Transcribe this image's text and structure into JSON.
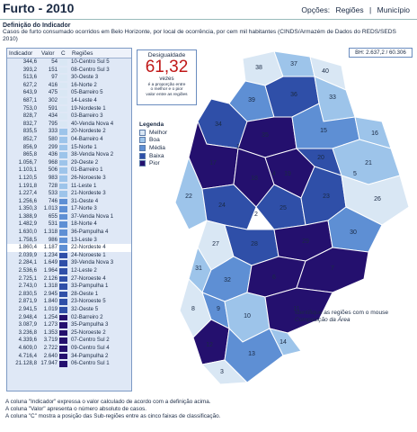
{
  "header": {
    "title": "Furto - 2010",
    "nav": {
      "options": "Opções:",
      "regions": "Regiões",
      "separator": "|",
      "municipality": "Município"
    }
  },
  "definition": {
    "title": "Definição do Indicador",
    "text": "Casos de furto consumado ocorridos em Belo Horizonte, por local de ocorrência, por cem mil habitantes (CINDS/Armazém de Dados do REDS/SEDS 2010)"
  },
  "table": {
    "headers": {
      "indicador": "Indicador",
      "valor": "Valor",
      "c": "C",
      "regioes": "Regiões"
    },
    "rows": [
      {
        "ind": "344,6",
        "val": "54",
        "c": 1,
        "reg": "10-Centro Sul 5"
      },
      {
        "ind": "393,2",
        "val": "151",
        "c": 1,
        "reg": "08-Centro Sul 3"
      },
      {
        "ind": "513,6",
        "val": "97",
        "c": 1,
        "reg": "30-Oeste 3"
      },
      {
        "ind": "627,2",
        "val": "416",
        "c": 1,
        "reg": "16-Norte 2"
      },
      {
        "ind": "643,9",
        "val": "475",
        "c": 1,
        "reg": "05-Barreiro 5"
      },
      {
        "ind": "687,1",
        "val": "302",
        "c": 1,
        "reg": "14-Leste 4"
      },
      {
        "ind": "753,0",
        "val": "591",
        "c": 1,
        "reg": "19-Nordeste 1"
      },
      {
        "ind": "828,7",
        "val": "434",
        "c": 1,
        "reg": "03-Barreiro 3"
      },
      {
        "ind": "832,7",
        "val": "795",
        "c": 1,
        "reg": "40-Venda Nova 4"
      },
      {
        "ind": "835,5",
        "val": "333",
        "c": 2,
        "reg": "20-Nordeste 2"
      },
      {
        "ind": "852,7",
        "val": "580",
        "c": 2,
        "reg": "04-Barreiro 4"
      },
      {
        "ind": "856,9",
        "val": "299",
        "c": 2,
        "reg": "15-Norte 1"
      },
      {
        "ind": "865,8",
        "val": "436",
        "c": 2,
        "reg": "38-Venda Nova 2"
      },
      {
        "ind": "1.056,7",
        "val": "968",
        "c": 2,
        "reg": "29-Oeste 2"
      },
      {
        "ind": "1.103,1",
        "val": "506",
        "c": 2,
        "reg": "01-Barreiro 1"
      },
      {
        "ind": "1.120,5",
        "val": "983",
        "c": 2,
        "reg": "26-Noroeste 3"
      },
      {
        "ind": "1.191,8",
        "val": "728",
        "c": 2,
        "reg": "11-Leste 1"
      },
      {
        "ind": "1.227,4",
        "val": "533",
        "c": 2,
        "reg": "21-Nordeste 3"
      },
      {
        "ind": "1.256,6",
        "val": "746",
        "c": 3,
        "reg": "31-Oeste 4"
      },
      {
        "ind": "1.350,3",
        "val": "1.013",
        "c": 3,
        "reg": "17-Norte 3"
      },
      {
        "ind": "1.388,9",
        "val": "655",
        "c": 3,
        "reg": "37-Venda Nova 1"
      },
      {
        "ind": "1.482,9",
        "val": "531",
        "c": 3,
        "reg": "18-Norte 4"
      },
      {
        "ind": "1.630,0",
        "val": "1.318",
        "c": 3,
        "reg": "36-Pampulha 4"
      },
      {
        "ind": "1.758,5",
        "val": "986",
        "c": 3,
        "reg": "13-Leste 3"
      },
      {
        "ind": "1.860,4",
        "val": "1.187",
        "c": 3,
        "reg": "22-Nordeste 4",
        "selected": true
      },
      {
        "ind": "2.039,9",
        "val": "1.234",
        "c": 4,
        "reg": "24-Noroeste 1"
      },
      {
        "ind": "2.284,1",
        "val": "1.649",
        "c": 4,
        "reg": "39-Venda Nova 3"
      },
      {
        "ind": "2.536,6",
        "val": "1.964",
        "c": 4,
        "reg": "12-Leste 2"
      },
      {
        "ind": "2.725,1",
        "val": "2.126",
        "c": 4,
        "reg": "27-Noroeste 4"
      },
      {
        "ind": "2.743,0",
        "val": "1.318",
        "c": 4,
        "reg": "33-Pampulha 1"
      },
      {
        "ind": "2.830,5",
        "val": "2.945",
        "c": 4,
        "reg": "28-Oeste 1"
      },
      {
        "ind": "2.871,9",
        "val": "1.840",
        "c": 4,
        "reg": "23-Noroeste 5"
      },
      {
        "ind": "2.941,5",
        "val": "1.019",
        "c": 4,
        "reg": "32-Oeste 5"
      },
      {
        "ind": "2.948,4",
        "val": "1.254",
        "c": 5,
        "reg": "02-Barreiro 2"
      },
      {
        "ind": "3.087,9",
        "val": "1.273",
        "c": 5,
        "reg": "35-Pampulha 3"
      },
      {
        "ind": "3.236,8",
        "val": "1.353",
        "c": 5,
        "reg": "25-Noroeste 2"
      },
      {
        "ind": "4.339,6",
        "val": "3.719",
        "c": 5,
        "reg": "07-Centro Sul 2"
      },
      {
        "ind": "4.609,0",
        "val": "2.722",
        "c": 5,
        "reg": "09-Centro Sul 4"
      },
      {
        "ind": "4.716,4",
        "val": "2.640",
        "c": 5,
        "reg": "34-Pampulha 2"
      },
      {
        "ind": "21.128,8",
        "val": "17.947",
        "c": 5,
        "reg": "06-Centro Sul 1"
      }
    ]
  },
  "disparity": {
    "label": "Desigualdade",
    "value": "61,32",
    "unit": "vezes",
    "explanation_1": "é a proporção entre",
    "explanation_2": "o melhor e o pior",
    "explanation_3": "valor entre as regiões"
  },
  "legend": {
    "title": "Legenda",
    "items": [
      {
        "label": "Melhor",
        "color": "#d9e7f4"
      },
      {
        "label": "Boa",
        "color": "#9dc4ea"
      },
      {
        "label": "Média",
        "color": "#5e8fd4"
      },
      {
        "label": "Baixa",
        "color": "#2f4fa8"
      },
      {
        "label": "Pior",
        "color": "#24106e"
      }
    ]
  },
  "bh_box": "BH: 2.637,2 / 60.306",
  "map_note": {
    "line1": "Identifique as regiões com o mouse",
    "line2": "Composição da Área"
  },
  "map_labels": [
    "38",
    "37",
    "40",
    "39",
    "36",
    "33",
    "34",
    "35",
    "15",
    "16",
    "17",
    "18",
    "19",
    "20",
    "21",
    "22",
    "24",
    "25",
    "23",
    "26",
    "27",
    "28",
    "29",
    "30",
    "31",
    "32",
    "6",
    "7",
    "8",
    "9",
    "10",
    "11",
    "12",
    "13",
    "14",
    "3",
    "2",
    "1",
    "5",
    "4"
  ],
  "notes": [
    "A coluna \"Indicador\" expressa o valor calculado de acordo com a definição acima.",
    "A coluna \"Valor\" apresenta o número absoluto de casos.",
    "A coluna \"C\" mostra a posição das Sub-regiões entre as cinco faixas de classificação."
  ]
}
